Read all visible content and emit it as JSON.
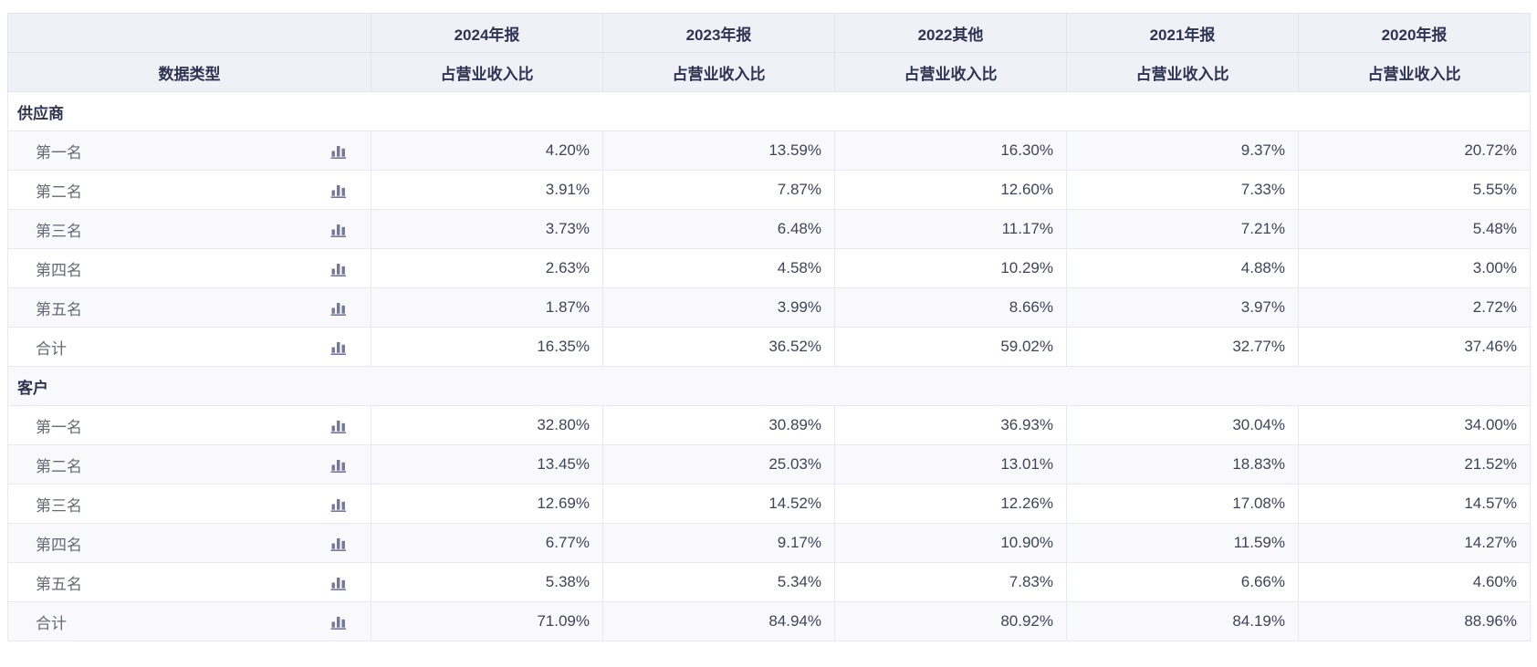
{
  "table": {
    "first_col_header": "数据类型",
    "sub_header": "占营业收入比",
    "year_headers": [
      "2024年报",
      "2023年报",
      "2022其他",
      "2021年报",
      "2020年报"
    ],
    "sections": [
      {
        "title": "供应商",
        "rows": [
          {
            "label": "第一名",
            "values": [
              "4.20%",
              "13.59%",
              "16.30%",
              "9.37%",
              "20.72%"
            ]
          },
          {
            "label": "第二名",
            "values": [
              "3.91%",
              "7.87%",
              "12.60%",
              "7.33%",
              "5.55%"
            ]
          },
          {
            "label": "第三名",
            "values": [
              "3.73%",
              "6.48%",
              "11.17%",
              "7.21%",
              "5.48%"
            ]
          },
          {
            "label": "第四名",
            "values": [
              "2.63%",
              "4.58%",
              "10.29%",
              "4.88%",
              "3.00%"
            ]
          },
          {
            "label": "第五名",
            "values": [
              "1.87%",
              "3.99%",
              "8.66%",
              "3.97%",
              "2.72%"
            ]
          },
          {
            "label": "合计",
            "values": [
              "16.35%",
              "36.52%",
              "59.02%",
              "32.77%",
              "37.46%"
            ]
          }
        ]
      },
      {
        "title": "客户",
        "rows": [
          {
            "label": "第一名",
            "values": [
              "32.80%",
              "30.89%",
              "36.93%",
              "30.04%",
              "34.00%"
            ]
          },
          {
            "label": "第二名",
            "values": [
              "13.45%",
              "25.03%",
              "13.01%",
              "18.83%",
              "21.52%"
            ]
          },
          {
            "label": "第三名",
            "values": [
              "12.69%",
              "14.52%",
              "12.26%",
              "17.08%",
              "14.57%"
            ]
          },
          {
            "label": "第四名",
            "values": [
              "6.77%",
              "9.17%",
              "10.90%",
              "11.59%",
              "14.27%"
            ]
          },
          {
            "label": "第五名",
            "values": [
              "5.38%",
              "5.34%",
              "7.83%",
              "6.66%",
              "4.60%"
            ]
          },
          {
            "label": "合计",
            "values": [
              "71.09%",
              "84.94%",
              "80.92%",
              "84.19%",
              "88.96%"
            ]
          }
        ]
      }
    ]
  },
  "icons": {
    "row_chart_icon": "bar-chart-icon"
  },
  "colors": {
    "header_bg": "#f0f0f7",
    "stripe_bg": "#f9f9fc",
    "border": "#e8e8f0",
    "header_text": "#2e3352",
    "value_text": "#3f445a",
    "label_text": "#666a76",
    "icon": "#74769b"
  }
}
